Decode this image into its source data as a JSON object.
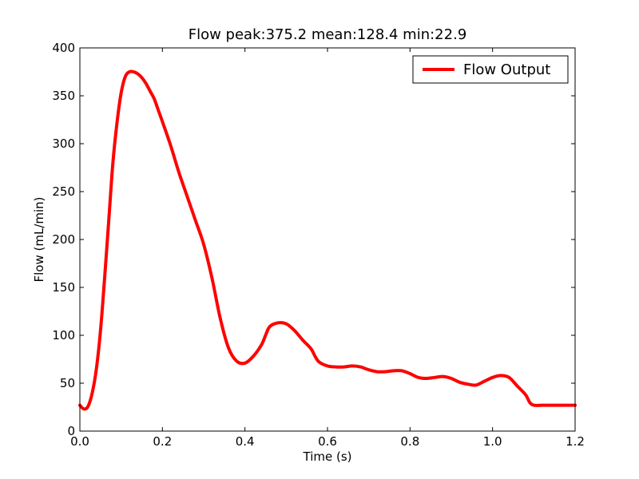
{
  "chart_data": {
    "type": "line",
    "title": "Flow peak:375.2 mean:128.4 min:22.9",
    "xlabel": "Time (s)",
    "ylabel": "Flow (mL/min)",
    "xlim": [
      0.0,
      1.2
    ],
    "ylim": [
      0,
      400
    ],
    "xticks": [
      0.0,
      0.2,
      0.4,
      0.6,
      0.8,
      1.0,
      1.2
    ],
    "xtick_labels": [
      "0.0",
      "0.2",
      "0.4",
      "0.6",
      "0.8",
      "1.0",
      "1.2"
    ],
    "yticks": [
      0,
      50,
      100,
      150,
      200,
      250,
      300,
      350,
      400
    ],
    "ytick_labels": [
      "0",
      "50",
      "100",
      "150",
      "200",
      "250",
      "300",
      "350",
      "400"
    ],
    "grid": false,
    "legend_position": "top-right",
    "series": [
      {
        "name": "Flow Output",
        "color": "#ff0000",
        "x": [
          0.0,
          0.01,
          0.02,
          0.03,
          0.04,
          0.05,
          0.06,
          0.07,
          0.08,
          0.09,
          0.1,
          0.11,
          0.12,
          0.13,
          0.14,
          0.15,
          0.16,
          0.17,
          0.18,
          0.19,
          0.2,
          0.22,
          0.24,
          0.26,
          0.28,
          0.3,
          0.32,
          0.34,
          0.36,
          0.38,
          0.4,
          0.42,
          0.44,
          0.45,
          0.46,
          0.48,
          0.5,
          0.52,
          0.54,
          0.56,
          0.57,
          0.58,
          0.6,
          0.62,
          0.64,
          0.66,
          0.68,
          0.7,
          0.72,
          0.74,
          0.76,
          0.78,
          0.8,
          0.82,
          0.84,
          0.86,
          0.88,
          0.9,
          0.92,
          0.94,
          0.96,
          0.98,
          1.0,
          1.02,
          1.04,
          1.06,
          1.08,
          1.09,
          1.1,
          1.12,
          1.14,
          1.15,
          1.16,
          1.18,
          1.2
        ],
        "y": [
          27,
          23,
          26,
          40,
          65,
          105,
          160,
          220,
          280,
          322,
          353,
          370,
          375,
          375,
          373,
          369,
          363,
          355,
          347,
          335,
          323,
          298,
          270,
          245,
          220,
          195,
          160,
          118,
          87,
          73,
          71,
          78,
          90,
          100,
          109,
          113,
          112,
          105,
          95,
          86,
          78,
          72,
          68,
          67,
          67,
          68,
          67,
          64,
          62,
          62,
          63,
          63,
          60,
          56,
          55,
          56,
          57,
          55,
          51,
          49,
          48,
          52,
          56,
          58,
          56,
          47,
          38,
          30,
          27,
          27,
          27,
          27,
          27,
          27,
          27
        ]
      }
    ]
  }
}
